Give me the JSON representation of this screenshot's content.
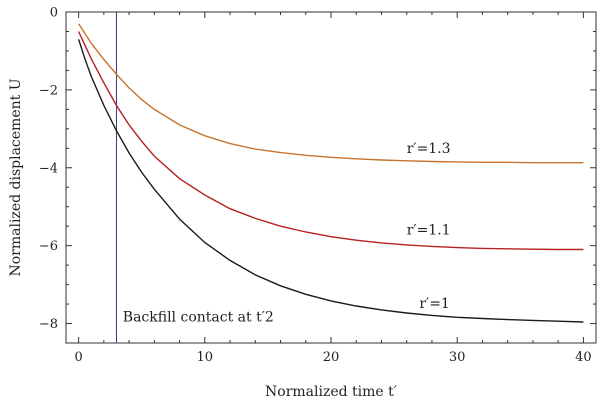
{
  "chart_data": {
    "type": "line",
    "xlabel": "Normalized time t′",
    "ylabel": "Normalized displacement U",
    "xlim": [
      -1,
      41
    ],
    "ylim": [
      -8.5,
      0
    ],
    "xticks": [
      0,
      10,
      20,
      30,
      40
    ],
    "yticks": [
      0,
      -2,
      -4,
      -6,
      -8
    ],
    "grid": false,
    "series": [
      {
        "name": "r′=1.3",
        "color": "#c8742c",
        "x": [
          0,
          0.5,
          1,
          2,
          3,
          4,
          5,
          6,
          8,
          10,
          12,
          14,
          16,
          18,
          20,
          22,
          24,
          26,
          28,
          30,
          32,
          34,
          36,
          38,
          40
        ],
        "values": [
          -0.3,
          -0.55,
          -0.8,
          -1.22,
          -1.6,
          -1.95,
          -2.25,
          -2.5,
          -2.9,
          -3.18,
          -3.38,
          -3.52,
          -3.61,
          -3.68,
          -3.73,
          -3.77,
          -3.8,
          -3.82,
          -3.84,
          -3.85,
          -3.86,
          -3.86,
          -3.87,
          -3.87,
          -3.87
        ]
      },
      {
        "name": "r′=1.1",
        "color": "#b52222",
        "x": [
          0,
          0.5,
          1,
          2,
          3,
          4,
          5,
          6,
          8,
          10,
          12,
          14,
          16,
          18,
          20,
          22,
          24,
          26,
          28,
          30,
          32,
          34,
          36,
          38,
          40
        ],
        "values": [
          -0.5,
          -0.85,
          -1.2,
          -1.82,
          -2.4,
          -2.9,
          -3.32,
          -3.7,
          -4.28,
          -4.7,
          -5.05,
          -5.3,
          -5.5,
          -5.65,
          -5.77,
          -5.86,
          -5.93,
          -5.98,
          -6.02,
          -6.05,
          -6.07,
          -6.08,
          -6.09,
          -6.1,
          -6.1
        ]
      },
      {
        "name": "r′=1",
        "color": "#1a1a1a",
        "x": [
          0,
          0.5,
          1,
          2,
          3,
          4,
          5,
          6,
          8,
          10,
          12,
          14,
          16,
          18,
          20,
          22,
          24,
          26,
          28,
          30,
          32,
          34,
          36,
          38,
          40
        ],
        "values": [
          -0.7,
          -1.2,
          -1.65,
          -2.4,
          -3.05,
          -3.62,
          -4.12,
          -4.55,
          -5.32,
          -5.92,
          -6.38,
          -6.75,
          -7.03,
          -7.25,
          -7.42,
          -7.55,
          -7.65,
          -7.73,
          -7.79,
          -7.84,
          -7.87,
          -7.9,
          -7.92,
          -7.94,
          -7.96
        ]
      }
    ],
    "vertical_line": {
      "x": 3,
      "color": "#3a3a7a"
    },
    "annotations": [
      {
        "text": "r′=1.3",
        "x": 26,
        "y": -3.62
      },
      {
        "text": "r′=1.1",
        "x": 26,
        "y": -5.72
      },
      {
        "text": "r′=1",
        "x": 27,
        "y": -7.6
      },
      {
        "text": "Backfill contact at t′2",
        "x": 3.5,
        "y": -7.95
      }
    ]
  }
}
